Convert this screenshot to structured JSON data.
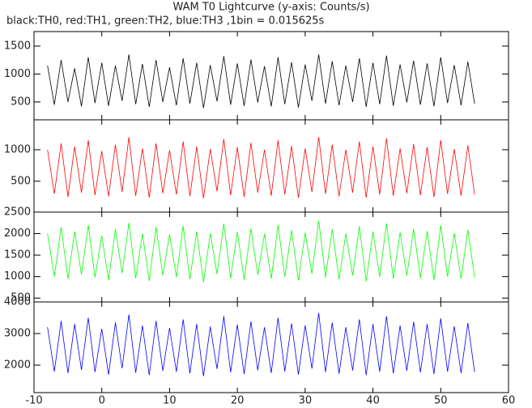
{
  "chart_data": {
    "type": "line",
    "title": "WAM T0 Lightcurve (y-axis: Counts/s)",
    "subtitle": "black:TH0, red:TH1, green:TH2, blue:TH3 ,1bin = 0.015625s",
    "xlim": [
      -10,
      60
    ],
    "xticks": [
      -10,
      0,
      10,
      20,
      30,
      40,
      50,
      60
    ],
    "x": [
      -8,
      -7,
      -6,
      -5,
      -4,
      -3,
      -2,
      -1,
      0,
      1,
      2,
      3,
      4,
      5,
      6,
      7,
      8,
      9,
      10,
      11,
      12,
      13,
      14,
      15,
      16,
      17,
      18,
      19,
      20,
      21,
      22,
      23,
      24,
      25,
      26,
      27,
      28,
      29,
      30,
      31,
      32,
      33,
      34,
      35,
      36,
      37,
      38,
      39,
      40,
      41,
      42,
      43,
      44,
      45,
      46,
      47,
      48,
      49,
      50,
      51,
      52,
      53,
      54,
      55
    ],
    "panels": [
      {
        "color": "#000000",
        "ylim": [
          180,
          1760
        ],
        "yticks": [
          500,
          1000,
          1500
        ],
        "values": [
          1150,
          450,
          1250,
          500,
          1100,
          420,
          1300,
          480,
          1200,
          430,
          1150,
          520,
          1350,
          460,
          1180,
          410,
          1250,
          500,
          1120,
          440,
          1280,
          470,
          1200,
          390,
          1160,
          510,
          1320,
          450,
          1190,
          430,
          1260,
          490,
          1140,
          420,
          1300,
          460,
          1210,
          400,
          1170,
          520,
          1350,
          470,
          1230,
          440,
          1150,
          500,
          1280,
          410,
          1200,
          460,
          1330,
          430,
          1170,
          490,
          1240,
          450,
          1190,
          420,
          1300,
          480,
          1160,
          440,
          1220,
          470
        ]
      },
      {
        "color": "#ff0000",
        "ylim": [
          10,
          1475
        ],
        "yticks": [
          500,
          1000
        ],
        "values": [
          1000,
          300,
          1100,
          250,
          1050,
          320,
          1150,
          280,
          980,
          260,
          1080,
          330,
          1200,
          270,
          1020,
          240,
          1100,
          310,
          990,
          290,
          1130,
          260,
          1050,
          230,
          1010,
          340,
          1170,
          280,
          1040,
          250,
          1110,
          320,
          1000,
          270,
          1150,
          290,
          1060,
          240,
          1020,
          330,
          1200,
          300,
          1080,
          260,
          1000,
          320,
          1130,
          240,
          1050,
          290,
          1180,
          270,
          1020,
          310,
          1090,
          280,
          1040,
          250,
          1150,
          300,
          1010,
          270,
          1070,
          290
        ]
      },
      {
        "color": "#00ff00",
        "ylim": [
          410,
          2500
        ],
        "yticks": [
          500,
          1000,
          1500,
          2000,
          2500
        ],
        "values": [
          2000,
          1000,
          2150,
          950,
          2050,
          1050,
          2200,
          980,
          1950,
          920,
          2100,
          1080,
          2250,
          960,
          2000,
          900,
          2150,
          1030,
          1980,
          990,
          2180,
          940,
          2050,
          870,
          2010,
          1060,
          2230,
          970,
          2040,
          930,
          2120,
          1040,
          1990,
          950,
          2200,
          1000,
          2080,
          910,
          2020,
          1070,
          2300,
          980,
          2100,
          940,
          2000,
          1030,
          2170,
          890,
          2050,
          990,
          2240,
          950,
          2030,
          1020,
          2110,
          970,
          2060,
          920,
          2190,
          1000,
          2010,
          950,
          2090,
          980
        ]
      },
      {
        "color": "#0000ff",
        "ylim": [
          1130,
          4000
        ],
        "yticks": [
          2000,
          3000,
          4000
        ],
        "values": [
          3200,
          1800,
          3400,
          1750,
          3300,
          1850,
          3500,
          1780,
          3150,
          1700,
          3350,
          1900,
          3600,
          1760,
          3250,
          1680,
          3400,
          1820,
          3180,
          1790,
          3450,
          1740,
          3300,
          1650,
          3220,
          1880,
          3550,
          1770,
          3280,
          1720,
          3380,
          1840,
          3200,
          1750,
          3500,
          1800,
          3320,
          1700,
          3260,
          1890,
          3650,
          1780,
          3350,
          1730,
          3200,
          1830,
          3450,
          1680,
          3300,
          1790,
          3550,
          1740,
          3250,
          1820,
          3370,
          1770,
          3300,
          1720,
          3480,
          1800,
          3230,
          1750,
          3330,
          1780
        ]
      }
    ]
  }
}
